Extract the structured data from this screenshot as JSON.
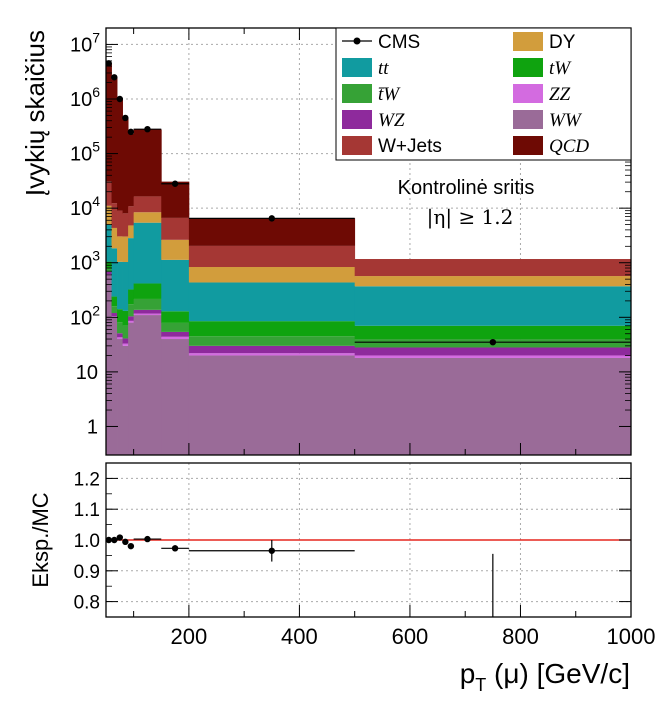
{
  "chart_data": [
    {
      "type": "bar",
      "stacked": true,
      "log_y": true,
      "ylabel": "Įvykių skaičius",
      "xlim": [
        50,
        1000
      ],
      "ylim": [
        0.3,
        20000000
      ],
      "y_tick_labels": [
        "1",
        "10",
        "10^2",
        "10^3",
        "10^4",
        "10^5",
        "10^6",
        "10^7"
      ],
      "annotation": {
        "line1": "Kontrolinė sritis",
        "line2": "|η| ≥ 1.2"
      },
      "legend_placement": "top-right",
      "bins": [
        50,
        60,
        70,
        80,
        90,
        100,
        150,
        200,
        500,
        1000
      ],
      "series": [
        {
          "name": "WW",
          "color": "#9a6b98",
          "values": [
            600,
            100,
            40,
            30,
            80,
            110,
            40,
            20,
            18,
            0
          ]
        },
        {
          "name": "ZZ",
          "color": "#d36be0",
          "values": [
            20,
            5,
            3,
            3,
            6,
            7,
            4,
            2,
            2,
            1
          ]
        },
        {
          "name": "WZ",
          "color": "#8e2a9c",
          "values": [
            60,
            15,
            8,
            8,
            18,
            20,
            10,
            8,
            8,
            0
          ]
        },
        {
          "name": "t̄W",
          "color": "#36a236",
          "values": [
            120,
            40,
            30,
            30,
            70,
            80,
            25,
            15,
            12,
            0
          ]
        },
        {
          "name": "tW",
          "color": "#0fa30f",
          "values": [
            250,
            80,
            60,
            60,
            150,
            200,
            50,
            40,
            30,
            2
          ]
        },
        {
          "name": "tt",
          "color": "#119ba0",
          "values": [
            4000,
            1600,
            900,
            900,
            2500,
            5000,
            1000,
            350,
            300,
            3
          ]
        },
        {
          "name": "DY",
          "color": "#d29d3c",
          "values": [
            6000,
            2500,
            2000,
            2000,
            2000,
            3000,
            1500,
            400,
            200,
            10
          ]
        },
        {
          "name": "W+Jets",
          "color": "#a53734",
          "values": [
            20000,
            8000,
            6000,
            5000,
            6000,
            8000,
            4000,
            1200,
            600,
            0
          ]
        },
        {
          "name": "QCD",
          "color": "#6e0a04",
          "values": [
            4500000,
            2500000,
            1000000,
            450000,
            220000,
            260000,
            24000,
            4500,
            0,
            28
          ]
        }
      ],
      "data_series": {
        "name": "CMS",
        "x": [
          55,
          65,
          75,
          85,
          95,
          125,
          175,
          350,
          750
        ],
        "y": [
          4500000,
          2500000,
          1000000,
          450000,
          250000,
          280000,
          28000,
          6500,
          35
        ]
      }
    },
    {
      "type": "scatter",
      "ylabel": "Eksp./MC",
      "xlabel": "p_T (μ) [GeV/c]",
      "xlim": [
        50,
        1000
      ],
      "ylim": [
        0.75,
        1.25
      ],
      "x_tick_labels": [
        "200",
        "400",
        "600",
        "800",
        "1000"
      ],
      "y_tick_labels": [
        "0.8",
        "0.9",
        "1.0",
        "1.1",
        "1.2"
      ],
      "reference_line": 1.0,
      "points": [
        {
          "x": 55,
          "y": 1.0,
          "xlow": 50,
          "xhigh": 60,
          "err": 0.003
        },
        {
          "x": 65,
          "y": 1.0,
          "xlow": 60,
          "xhigh": 70,
          "err": 0.003
        },
        {
          "x": 75,
          "y": 1.008,
          "xlow": 70,
          "xhigh": 80,
          "err": 0.004
        },
        {
          "x": 85,
          "y": 0.994,
          "xlow": 80,
          "xhigh": 90,
          "err": 0.005
        },
        {
          "x": 95,
          "y": 0.98,
          "xlow": 90,
          "xhigh": 100,
          "err": 0.006
        },
        {
          "x": 125,
          "y": 1.003,
          "xlow": 100,
          "xhigh": 150,
          "err": 0.004
        },
        {
          "x": 175,
          "y": 0.973,
          "xlow": 150,
          "xhigh": 200,
          "err": 0.01
        },
        {
          "x": 350,
          "y": 0.965,
          "xlow": 200,
          "xhigh": 500,
          "err": 0.035
        },
        {
          "x": 750,
          "y": null,
          "xlow": 500,
          "xhigh": 1000,
          "err_low": 0.7,
          "err_high": 0.955
        }
      ]
    }
  ],
  "legend": [
    {
      "label": "CMS",
      "kind": "marker",
      "color": "#000000",
      "italic": false
    },
    {
      "label": "DY",
      "kind": "box",
      "color": "#d29d3c",
      "italic": false
    },
    {
      "label": "tt",
      "kind": "box",
      "color": "#119ba0",
      "italic": true
    },
    {
      "label": "tW",
      "kind": "box",
      "color": "#0fa30f",
      "italic": true
    },
    {
      "label": "t̄W",
      "kind": "box",
      "color": "#36a236",
      "italic": true
    },
    {
      "label": "ZZ",
      "kind": "box",
      "color": "#d36be0",
      "italic": true
    },
    {
      "label": "WZ",
      "kind": "box",
      "color": "#8e2a9c",
      "italic": true
    },
    {
      "label": "WW",
      "kind": "box",
      "color": "#9a6b98",
      "italic": true
    },
    {
      "label": "W+Jets",
      "kind": "box",
      "color": "#a53734",
      "italic": false
    },
    {
      "label": "QCD",
      "kind": "box",
      "color": "#6e0a04",
      "italic": true
    }
  ]
}
